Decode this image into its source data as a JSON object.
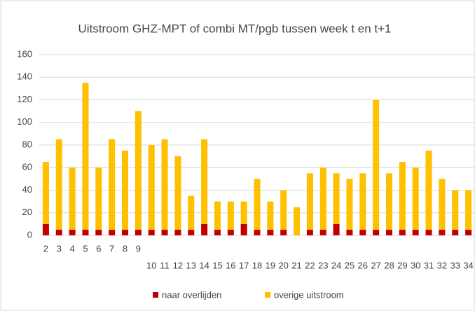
{
  "chart_data": {
    "type": "stacked_bar",
    "title": "Uitstroom GHZ-MPT of combi MT/pgb tussen week t en t+1",
    "categories": [
      "2",
      "3",
      "4",
      "5",
      "6",
      "7",
      "8",
      "9",
      "10",
      "11",
      "12",
      "13",
      "14",
      "15",
      "16",
      "17",
      "18",
      "19",
      "20",
      "21",
      "22",
      "23",
      "24",
      "25",
      "26",
      "27",
      "28",
      "29",
      "30",
      "31",
      "32",
      "33",
      "34"
    ],
    "series": [
      {
        "name": "naar overlijden",
        "color": "#c00000",
        "values": [
          10,
          5,
          5,
          5,
          5,
          5,
          5,
          5,
          5,
          5,
          5,
          5,
          10,
          5,
          5,
          10,
          5,
          5,
          5,
          0,
          5,
          5,
          10,
          5,
          5,
          5,
          5,
          5,
          5,
          5,
          5,
          5,
          5
        ]
      },
      {
        "name": "overige uitstroom",
        "color": "#ffc000",
        "values": [
          55,
          80,
          55,
          130,
          55,
          80,
          70,
          105,
          75,
          80,
          65,
          30,
          75,
          25,
          25,
          20,
          45,
          25,
          35,
          25,
          50,
          55,
          45,
          45,
          50,
          115,
          50,
          60,
          55,
          70,
          45,
          35,
          35
        ]
      }
    ],
    "ylim": [
      0,
      160
    ],
    "yticks": [
      0,
      20,
      40,
      60,
      80,
      100,
      120,
      140,
      160
    ],
    "grid": true,
    "legend": "bottom"
  }
}
